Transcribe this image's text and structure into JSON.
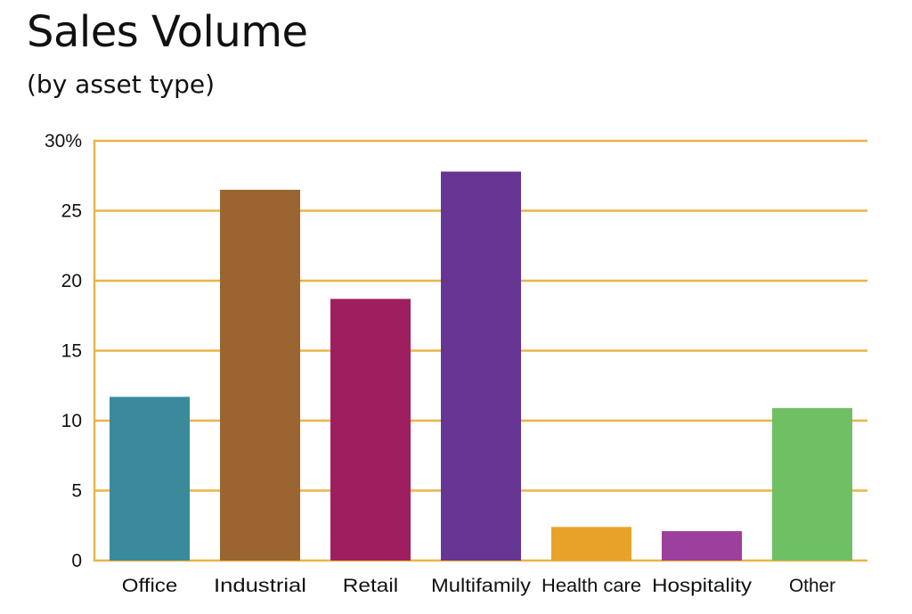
{
  "chart_data": {
    "type": "bar",
    "title": "Sales Volume",
    "subtitle": "(by asset type)",
    "categories": [
      "Office",
      "Industrial",
      "Retail",
      "Multifamily",
      "Health care",
      "Hospitality",
      "Other"
    ],
    "values": [
      11.7,
      26.5,
      18.7,
      27.8,
      2.4,
      2.1,
      10.9
    ],
    "bar_colors": [
      "#3a8a9c",
      "#9a6530",
      "#9e1f5f",
      "#663593",
      "#e8a22a",
      "#9d3f9c",
      "#6fbf63"
    ],
    "ylim": [
      0,
      30
    ],
    "yticks": [
      0,
      5,
      10,
      15,
      20,
      25,
      30
    ],
    "ytick_labels": [
      "0",
      "5",
      "10",
      "15",
      "20",
      "25",
      "30%"
    ],
    "grid": true,
    "grid_color": "#e8b548",
    "xlabel": "",
    "ylabel": ""
  }
}
